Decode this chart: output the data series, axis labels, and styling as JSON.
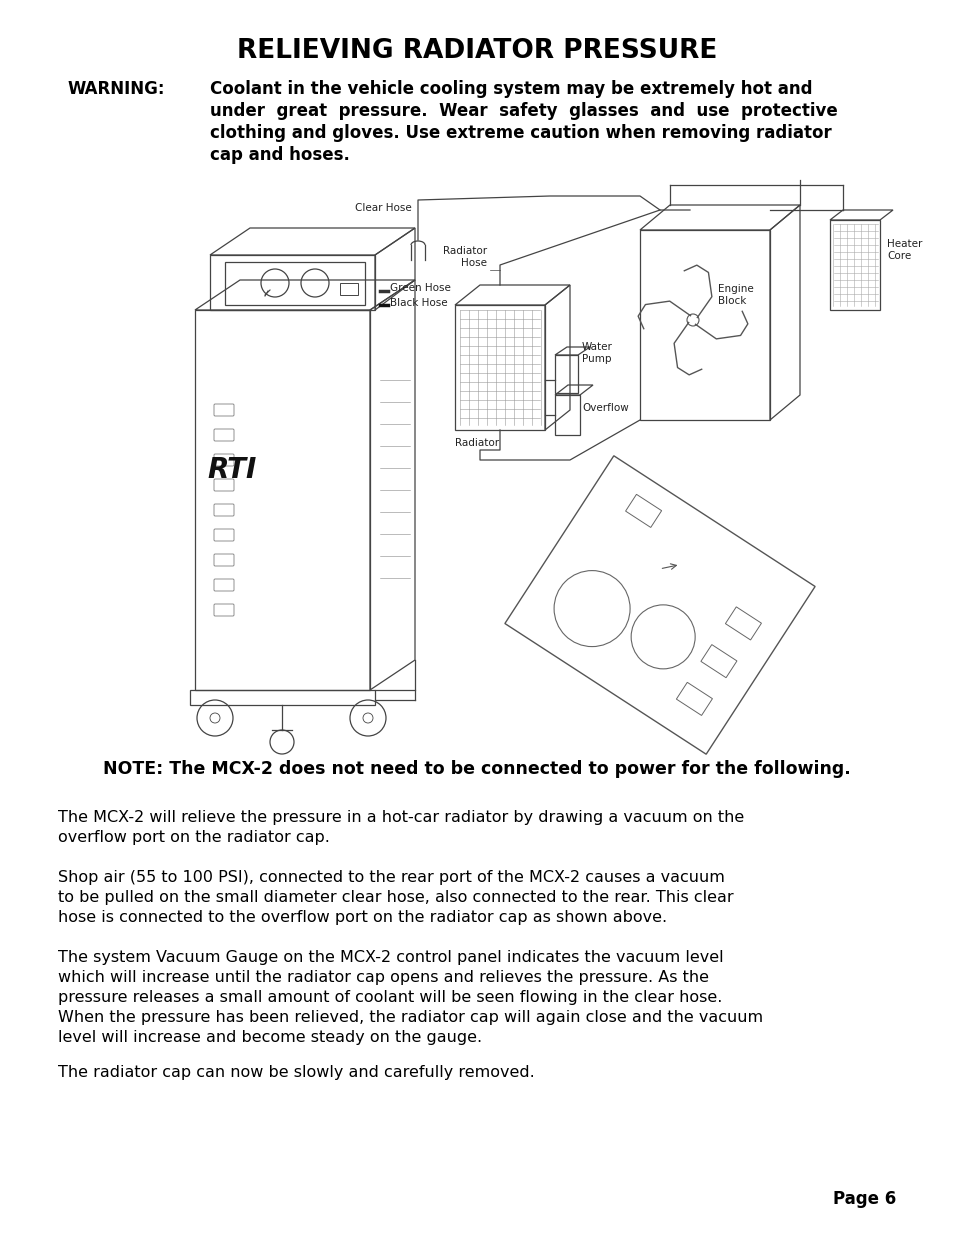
{
  "title": "RELIEVING RADIATOR PRESSURE",
  "warning_label": "WARNING:",
  "warning_lines": [
    "Coolant in the vehicle cooling system may be extremely hot and",
    "under  great  pressure.  Wear  safety  glasses  and  use  protective",
    "clothing and gloves. Use extreme caution when removing radiator",
    "cap and hoses."
  ],
  "note_text": "NOTE: The MCX-2 does not need to be connected to power for the following.",
  "para1_lines": [
    "The MCX-2 will relieve the pressure in a hot-car radiator by drawing a vacuum on the",
    "overflow port on the radiator cap."
  ],
  "para2_lines": [
    "Shop air (55 to 100 PSI), connected to the rear port of the MCX-2 causes a vacuum",
    "to be pulled on the small diameter clear hose, also connected to the rear. This clear",
    "hose is connected to the overflow port on the radiator cap as shown above."
  ],
  "para3_lines": [
    "The system Vacuum Gauge on the MCX-2 control panel indicates the vacuum level",
    "which will increase until the radiator cap opens and relieves the pressure. As the",
    "pressure releases a small amount of coolant will be seen flowing in the clear hose.",
    "When the pressure has been relieved, the radiator cap will again close and the vacuum",
    "level will increase and become steady on the gauge."
  ],
  "para4": "The radiator cap can now be slowly and carefully removed.",
  "page_label": "Page 6",
  "bg_color": "#ffffff",
  "text_color": "#000000"
}
